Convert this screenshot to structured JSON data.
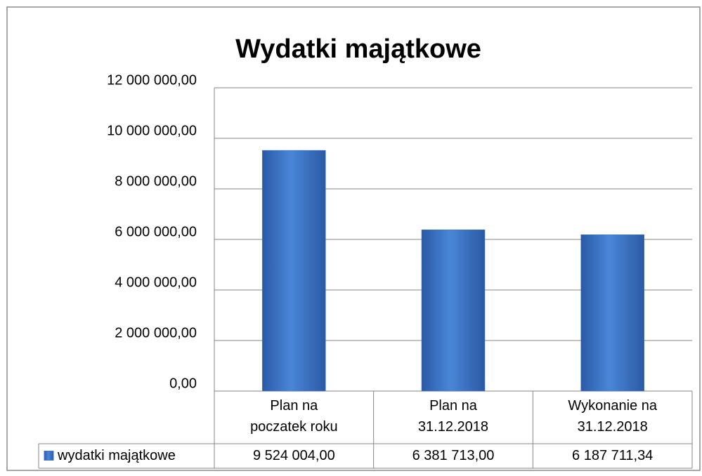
{
  "chart_data": {
    "type": "bar",
    "title": "Wydatki majątkowe",
    "categories": [
      "Plan na\npoczatek roku",
      "Plan na\n31.12.2018",
      "Wykonanie na\n31.12.2018"
    ],
    "series": [
      {
        "name": "wydatki majątkowe",
        "color": "#3f77c8",
        "values": [
          9524004,
          6381713,
          6187711.34
        ],
        "value_labels": [
          "9 524 004,00",
          "6 381 713,00",
          "6 187 711,34"
        ]
      }
    ],
    "ylim": [
      0,
      12000000
    ],
    "yticks": [
      {
        "value": 0,
        "label": "0,00"
      },
      {
        "value": 2000000,
        "label": "2 000 000,00"
      },
      {
        "value": 4000000,
        "label": "4 000 000,00"
      },
      {
        "value": 6000000,
        "label": "6 000 000,00"
      },
      {
        "value": 8000000,
        "label": "8 000 000,00"
      },
      {
        "value": 10000000,
        "label": "10 000 000,00"
      },
      {
        "value": 12000000,
        "label": "12 000 000,00"
      }
    ],
    "grid": true,
    "data_table": true
  }
}
